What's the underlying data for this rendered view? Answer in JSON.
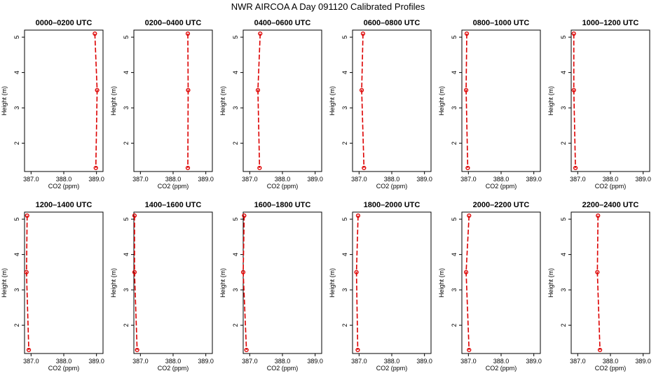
{
  "figure": {
    "title": "NWR AIRCOA A  Day 091120  Calibrated Profiles"
  },
  "colors": {
    "series": "#dd0000",
    "axis": "#000000",
    "background": "#ffffff"
  },
  "chart_data": [
    {
      "type": "line",
      "title": "0000–0200 UTC",
      "xlabel": "CO2 (ppm)",
      "ylabel": "Height (m)",
      "xlim": [
        386.8,
        389.2
      ],
      "ylim": [
        1.2,
        5.2
      ],
      "xticks": [
        "387.0",
        "388.0",
        "389.0"
      ],
      "yticks": [
        "2",
        "3",
        "4",
        "5"
      ],
      "grid": false,
      "legend": "none",
      "series": [
        {
          "x": [
            388.95,
            389.02,
            388.98
          ],
          "y": [
            5.1,
            3.5,
            1.3
          ]
        }
      ]
    },
    {
      "type": "line",
      "title": "0200–0400 UTC",
      "xlabel": "CO2 (ppm)",
      "ylabel": "Height (m)",
      "xlim": [
        386.8,
        389.2
      ],
      "ylim": [
        1.2,
        5.2
      ],
      "xticks": [
        "387.0",
        "388.0",
        "389.0"
      ],
      "yticks": [
        "2",
        "3",
        "4",
        "5"
      ],
      "grid": false,
      "legend": "none",
      "series": [
        {
          "x": [
            388.45,
            388.46,
            388.45
          ],
          "y": [
            5.1,
            3.5,
            1.3
          ]
        }
      ]
    },
    {
      "type": "line",
      "title": "0400–0600 UTC",
      "xlabel": "CO2 (ppm)",
      "ylabel": "Height (m)",
      "xlim": [
        386.8,
        389.2
      ],
      "ylim": [
        1.2,
        5.2
      ],
      "xticks": [
        "387.0",
        "388.0",
        "389.0"
      ],
      "yticks": [
        "2",
        "3",
        "4",
        "5"
      ],
      "grid": false,
      "legend": "none",
      "series": [
        {
          "x": [
            387.32,
            387.25,
            387.3
          ],
          "y": [
            5.1,
            3.5,
            1.3
          ]
        }
      ]
    },
    {
      "type": "line",
      "title": "0600–0800 UTC",
      "xlabel": "CO2 (ppm)",
      "ylabel": "Height (m)",
      "xlim": [
        386.8,
        389.2
      ],
      "ylim": [
        1.2,
        5.2
      ],
      "xticks": [
        "387.0",
        "388.0",
        "389.0"
      ],
      "yticks": [
        "2",
        "3",
        "4",
        "5"
      ],
      "grid": false,
      "legend": "none",
      "series": [
        {
          "x": [
            387.12,
            387.08,
            387.15
          ],
          "y": [
            5.1,
            3.5,
            1.3
          ]
        }
      ]
    },
    {
      "type": "line",
      "title": "0800–1000 UTC",
      "xlabel": "CO2 (ppm)",
      "ylabel": "Height (m)",
      "xlim": [
        386.8,
        389.2
      ],
      "ylim": [
        1.2,
        5.2
      ],
      "xticks": [
        "387.0",
        "388.0",
        "389.0"
      ],
      "yticks": [
        "2",
        "3",
        "4",
        "5"
      ],
      "grid": false,
      "legend": "none",
      "series": [
        {
          "x": [
            386.95,
            386.93,
            386.98
          ],
          "y": [
            5.1,
            3.5,
            1.3
          ]
        }
      ]
    },
    {
      "type": "line",
      "title": "1000–1200 UTC",
      "xlabel": "CO2 (ppm)",
      "ylabel": "Height (m)",
      "xlim": [
        386.8,
        389.2
      ],
      "ylim": [
        1.2,
        5.2
      ],
      "xticks": [
        "387.0",
        "388.0",
        "389.0"
      ],
      "yticks": [
        "2",
        "3",
        "4",
        "5"
      ],
      "grid": false,
      "legend": "none",
      "series": [
        {
          "x": [
            386.88,
            386.88,
            386.93
          ],
          "y": [
            5.1,
            3.5,
            1.3
          ]
        }
      ]
    },
    {
      "type": "line",
      "title": "1200–1400 UTC",
      "xlabel": "CO2 (ppm)",
      "ylabel": "Height (m)",
      "xlim": [
        386.8,
        389.2
      ],
      "ylim": [
        1.2,
        5.2
      ],
      "xticks": [
        "387.0",
        "388.0",
        "389.0"
      ],
      "yticks": [
        "2",
        "3",
        "4",
        "5"
      ],
      "grid": false,
      "legend": "none",
      "series": [
        {
          "x": [
            386.88,
            386.86,
            386.93
          ],
          "y": [
            5.1,
            3.5,
            1.3
          ]
        }
      ]
    },
    {
      "type": "line",
      "title": "1400–1600 UTC",
      "xlabel": "CO2 (ppm)",
      "ylabel": "Height (m)",
      "xlim": [
        386.8,
        389.2
      ],
      "ylim": [
        1.2,
        5.2
      ],
      "xticks": [
        "387.0",
        "388.0",
        "389.0"
      ],
      "yticks": [
        "2",
        "3",
        "4",
        "5"
      ],
      "grid": false,
      "legend": "none",
      "series": [
        {
          "x": [
            386.82,
            386.82,
            386.9
          ],
          "y": [
            5.1,
            3.5,
            1.3
          ]
        }
      ]
    },
    {
      "type": "line",
      "title": "1600–1800 UTC",
      "xlabel": "CO2 (ppm)",
      "ylabel": "Height (m)",
      "xlim": [
        386.8,
        389.2
      ],
      "ylim": [
        1.2,
        5.2
      ],
      "xticks": [
        "387.0",
        "388.0",
        "389.0"
      ],
      "yticks": [
        "2",
        "3",
        "4",
        "5"
      ],
      "grid": false,
      "legend": "none",
      "series": [
        {
          "x": [
            386.83,
            386.8,
            386.9
          ],
          "y": [
            5.1,
            3.5,
            1.3
          ]
        }
      ]
    },
    {
      "type": "line",
      "title": "1800–2000 UTC",
      "xlabel": "CO2 (ppm)",
      "ylabel": "Height (m)",
      "xlim": [
        386.8,
        389.2
      ],
      "ylim": [
        1.2,
        5.2
      ],
      "xticks": [
        "387.0",
        "388.0",
        "389.0"
      ],
      "yticks": [
        "2",
        "3",
        "4",
        "5"
      ],
      "grid": false,
      "legend": "none",
      "series": [
        {
          "x": [
            386.97,
            386.92,
            386.96
          ],
          "y": [
            5.1,
            3.5,
            1.3
          ]
        }
      ]
    },
    {
      "type": "line",
      "title": "2000–2200 UTC",
      "xlabel": "CO2 (ppm)",
      "ylabel": "Height (m)",
      "xlim": [
        386.8,
        389.2
      ],
      "ylim": [
        1.2,
        5.2
      ],
      "xticks": [
        "387.0",
        "388.0",
        "389.0"
      ],
      "yticks": [
        "2",
        "3",
        "4",
        "5"
      ],
      "grid": false,
      "legend": "none",
      "series": [
        {
          "x": [
            387.02,
            386.93,
            387.02
          ],
          "y": [
            5.1,
            3.5,
            1.3
          ]
        }
      ]
    },
    {
      "type": "line",
      "title": "2200–2400 UTC",
      "xlabel": "CO2 (ppm)",
      "ylabel": "Height (m)",
      "xlim": [
        386.8,
        389.2
      ],
      "ylim": [
        1.2,
        5.2
      ],
      "xticks": [
        "387.0",
        "388.0",
        "389.0"
      ],
      "yticks": [
        "2",
        "3",
        "4",
        "5"
      ],
      "grid": false,
      "legend": "none",
      "series": [
        {
          "x": [
            387.62,
            387.6,
            387.68
          ],
          "y": [
            5.1,
            3.5,
            1.3
          ]
        }
      ]
    }
  ]
}
